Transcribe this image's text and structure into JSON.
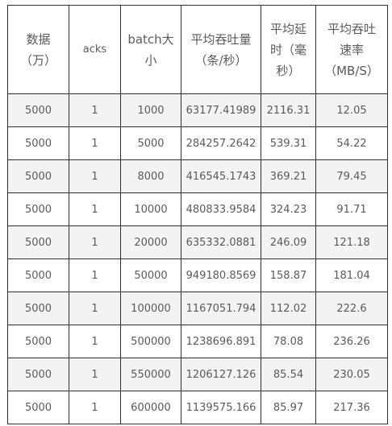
{
  "table": {
    "headers": [
      "数据\n（万）",
      "acks",
      "batch大\n小",
      "平均吞吐量\n（条/秒）",
      "平均延\n时（毫\n秒）",
      "平均吞吐\n速率\n（MB/S）"
    ],
    "rows": [
      [
        "5000",
        "1",
        "1000",
        "63177.41989",
        "2116.31",
        "12.05"
      ],
      [
        "5000",
        "1",
        "5000",
        "284257.2642",
        "539.31",
        "54.22"
      ],
      [
        "5000",
        "1",
        "8000",
        "416545.1743",
        "369.21",
        "79.45"
      ],
      [
        "5000",
        "1",
        "10000",
        "480833.9584",
        "324.23",
        "91.71"
      ],
      [
        "5000",
        "1",
        "20000",
        "635332.0881",
        "246.09",
        "121.18"
      ],
      [
        "5000",
        "1",
        "50000",
        "949180.8569",
        "158.87",
        "181.04"
      ],
      [
        "5000",
        "1",
        "100000",
        "1167051.794",
        "112.02",
        "222.6"
      ],
      [
        "5000",
        "1",
        "500000",
        "1238696.891",
        "78.08",
        "236.26"
      ],
      [
        "5000",
        "1",
        "550000",
        "1206127.126",
        "85.54",
        "230.05"
      ],
      [
        "5000",
        "1",
        "600000",
        "1139575.166",
        "85.97",
        "217.36"
      ]
    ]
  }
}
